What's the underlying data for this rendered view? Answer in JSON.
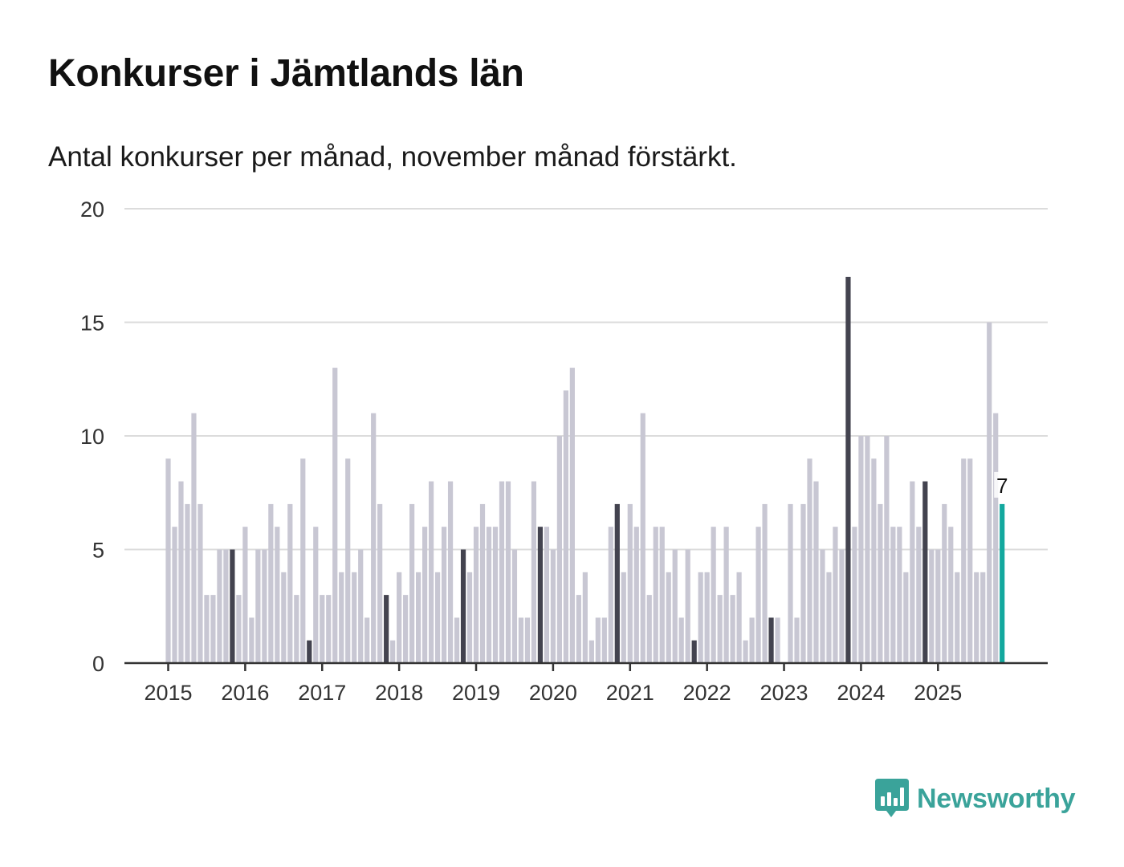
{
  "title": "Konkurser i Jämtlands län",
  "subtitle": "Antal konkurser per månad, november månad förstärkt.",
  "brand": {
    "name": "Newsworthy",
    "color": "#3aa39a",
    "icon": "newsworthy-logo-icon"
  },
  "chart_data": {
    "type": "bar",
    "title": "Konkurser i Jämtlands län",
    "subtitle": "Antal konkurser per månad, november månad förstärkt.",
    "xlabel": "",
    "ylabel": "",
    "ylim": [
      0,
      20
    ],
    "yticks": [
      0,
      5,
      10,
      15,
      20
    ],
    "grid": true,
    "start": "2015-01",
    "highlight_month": 11,
    "annotation": "7",
    "colors": {
      "default": "#c8c7d3",
      "highlight": "#43434f",
      "latest": "#13a89e",
      "grid": "#dcdcdc",
      "axis": "#333333"
    },
    "xticks": [
      "2015",
      "2016",
      "2017",
      "2018",
      "2019",
      "2020",
      "2021",
      "2022",
      "2023",
      "2024",
      "2025"
    ],
    "series": [
      {
        "name": "Antal konkurser",
        "values": [
          9,
          6,
          8,
          7,
          11,
          7,
          3,
          3,
          5,
          5,
          5,
          3,
          6,
          2,
          5,
          5,
          7,
          6,
          4,
          7,
          3,
          9,
          1,
          6,
          3,
          3,
          13,
          4,
          9,
          4,
          5,
          2,
          11,
          7,
          3,
          1,
          4,
          3,
          7,
          4,
          6,
          8,
          4,
          6,
          8,
          2,
          5,
          4,
          6,
          7,
          6,
          6,
          8,
          8,
          5,
          2,
          2,
          8,
          6,
          6,
          5,
          10,
          12,
          13,
          3,
          4,
          1,
          2,
          2,
          6,
          7,
          4,
          7,
          6,
          11,
          3,
          6,
          6,
          4,
          5,
          2,
          5,
          1,
          4,
          4,
          6,
          3,
          6,
          3,
          4,
          1,
          2,
          6,
          7,
          2,
          2,
          0,
          7,
          2,
          7,
          9,
          8,
          5,
          4,
          6,
          5,
          17,
          6,
          10,
          10,
          9,
          7,
          10,
          6,
          6,
          4,
          8,
          6,
          8,
          5,
          5,
          7,
          6,
          4,
          9,
          9,
          4,
          4,
          15,
          11,
          7
        ]
      }
    ]
  }
}
